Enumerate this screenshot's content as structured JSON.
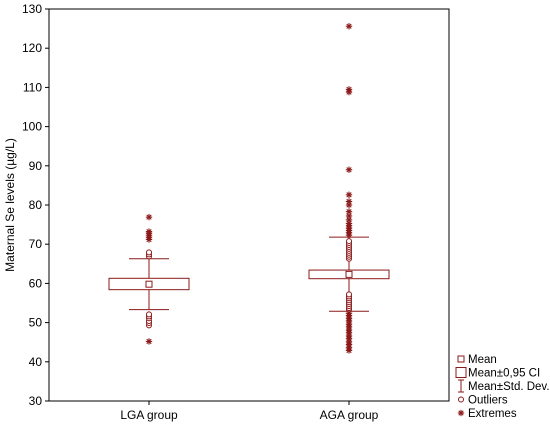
{
  "chart_data": {
    "type": "boxplot",
    "title": "",
    "xlabel": "",
    "ylabel": "Maternal Se levels (µg/L)",
    "ylim": [
      30,
      130
    ],
    "yticks": [
      "30",
      "40",
      "50",
      "60",
      "70",
      "80",
      "90",
      "100",
      "110",
      "120",
      "130"
    ],
    "grid": false,
    "legend_placement": "bottom-right",
    "color": "#8B1A1A",
    "categories": [
      "LGA group",
      "AGA group"
    ],
    "series": [
      {
        "category": "LGA group",
        "mean": 59.8,
        "ci95": [
          58.4,
          61.3
        ],
        "sd_range": [
          53.3,
          66.3
        ],
        "outliers": [
          49.3,
          49.9,
          50.4,
          51.1,
          51.6,
          52.1,
          66.9,
          67.4,
          67.9
        ],
        "extremes": [
          45.2,
          71.2,
          71.8,
          72.3,
          72.8,
          73.2,
          76.9
        ]
      },
      {
        "category": "AGA group",
        "mean": 62.3,
        "ci95": [
          61.2,
          63.4
        ],
        "sd_range": [
          52.9,
          71.8
        ],
        "outliers": [
          53.3,
          53.7,
          54.2,
          54.7,
          55.2,
          55.7,
          56.2,
          56.7,
          57.2,
          66.3,
          66.8,
          67.3,
          67.8,
          68.3,
          68.8,
          69.3,
          69.8,
          70.3,
          70.8
        ],
        "extremes": [
          42.9,
          43.6,
          44.4,
          45.1,
          45.9,
          46.6,
          47.4,
          48.1,
          48.9,
          49.6,
          50.4,
          51.1,
          51.8,
          52.4,
          72.3,
          72.9,
          73.5,
          74.1,
          74.7,
          75.3,
          76.2,
          77.2,
          78.3,
          80.0,
          80.9,
          82.6,
          89.0,
          108.8,
          109.5,
          125.6
        ]
      }
    ],
    "legend": [
      {
        "symbol": "mean",
        "label": "Mean"
      },
      {
        "symbol": "box",
        "label": "Mean±0,95 CI"
      },
      {
        "symbol": "whisker",
        "label": "Mean±Std. Dev."
      },
      {
        "symbol": "outlier",
        "label": "Outliers"
      },
      {
        "symbol": "extreme",
        "label": "Extremes"
      }
    ]
  }
}
